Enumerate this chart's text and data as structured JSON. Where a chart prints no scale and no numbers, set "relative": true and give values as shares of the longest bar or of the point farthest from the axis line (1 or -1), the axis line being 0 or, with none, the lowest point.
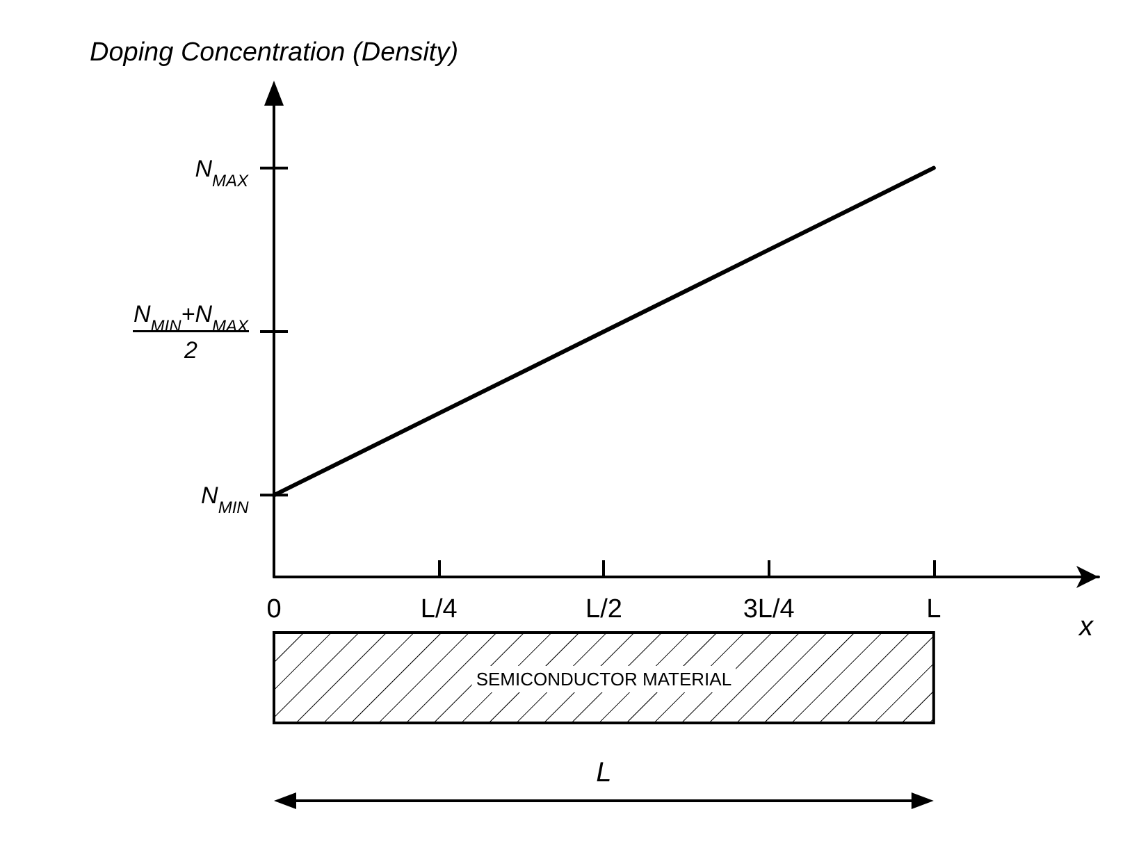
{
  "chart_data": {
    "type": "line",
    "ylabel": "Doping Concentration (Density)",
    "xlabel": "x",
    "categories": [
      "0",
      "L/4",
      "L/2",
      "3L/4",
      "L",
      null
    ],
    "values": [
      0.2,
      0.4,
      0.6,
      0.8,
      1,
      null
    ],
    "color": "#000000",
    "marker": "none",
    "line_style": "solid",
    "relative": true,
    "grid": false,
    "ref_lines": [
      {
        "axis": "y",
        "value": 0.2,
        "label": "N$_{MIN}$"
      },
      {
        "axis": "y",
        "value": 0.6,
        "label": "N$_{MIN}$+N$_{MAX}$\n2"
      },
      {
        "axis": "y",
        "value": 1,
        "label": "N$_{MAX}$"
      }
    ],
    "annotations": [
      "SEMICONDUCTOR MATERIAL",
      "L"
    ]
  }
}
